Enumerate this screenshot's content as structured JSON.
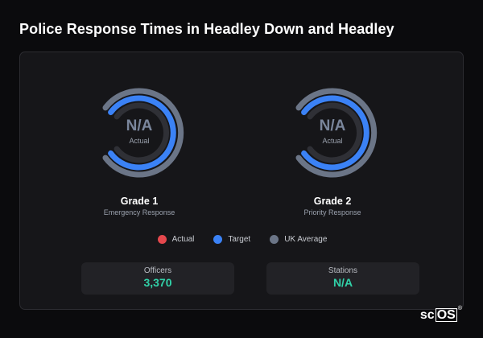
{
  "title": "Police Response Times in Headley Down and Headley",
  "colors": {
    "actual": "#e5484d",
    "target": "#3b82f6",
    "uk_average": "#6b7587",
    "stat_value": "#31d1a8",
    "gauge_track": "#2f3036"
  },
  "gauges": [
    {
      "value": "N/A",
      "value_label": "Actual",
      "grade": "Grade 1",
      "response_type": "Emergency Response"
    },
    {
      "value": "N/A",
      "value_label": "Actual",
      "grade": "Grade 2",
      "response_type": "Priority Response"
    }
  ],
  "legend": [
    {
      "label": "Actual",
      "color": "#e5484d"
    },
    {
      "label": "Target",
      "color": "#3b82f6"
    },
    {
      "label": "UK Average",
      "color": "#6b7587"
    }
  ],
  "stats": [
    {
      "label": "Officers",
      "value": "3,370"
    },
    {
      "label": "Stations",
      "value": "N/A"
    }
  ],
  "brand": {
    "prefix": "sc",
    "boxed": "OS",
    "mark": "®"
  }
}
